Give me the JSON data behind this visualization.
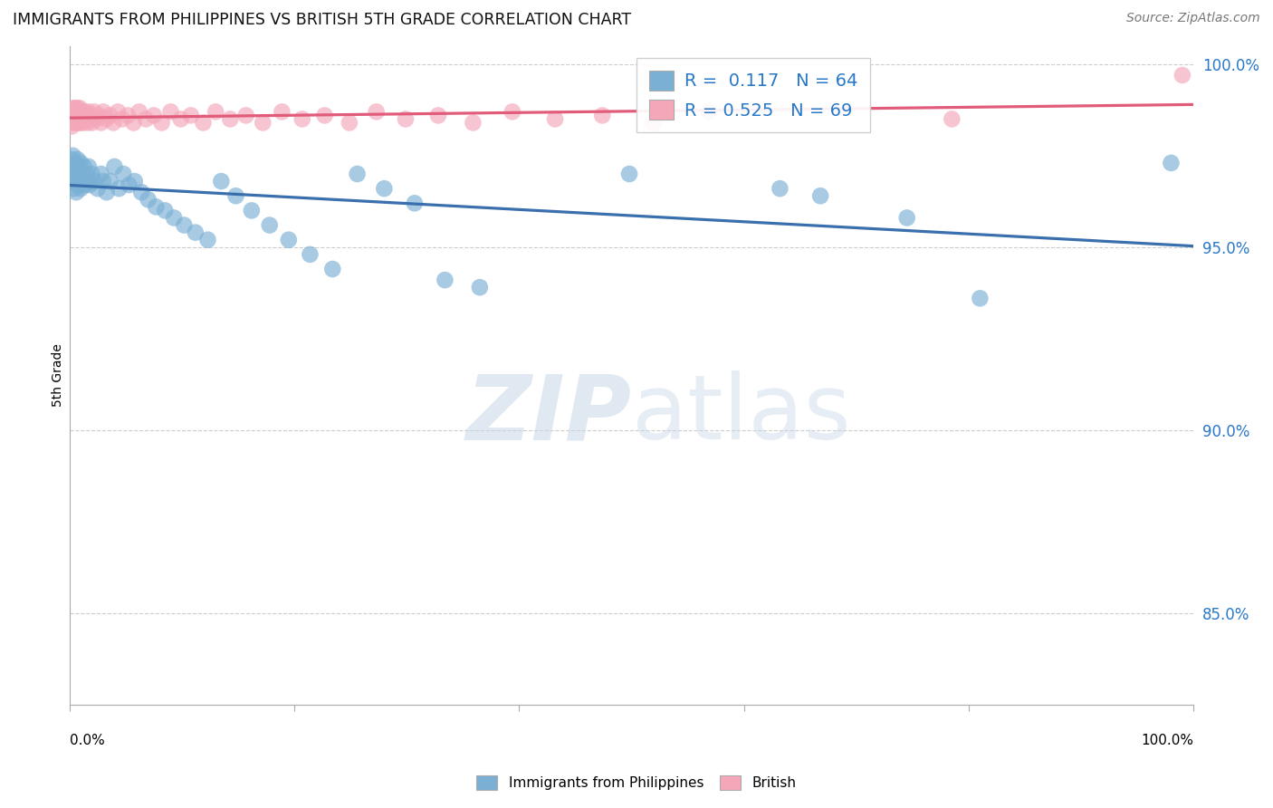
{
  "title": "IMMIGRANTS FROM PHILIPPINES VS BRITISH 5TH GRADE CORRELATION CHART",
  "source": "Source: ZipAtlas.com",
  "ylabel": "5th Grade",
  "R_blue": 0.117,
  "N_blue": 64,
  "R_pink": 0.525,
  "N_pink": 69,
  "blue_color": "#7ab0d4",
  "pink_color": "#f4a7b9",
  "blue_line_color": "#3a6fad",
  "pink_line_color": "#e05c7a",
  "legend_blue_label": "Immigrants from Philippines",
  "legend_pink_label": "British",
  "xlim": [
    0.0,
    1.0
  ],
  "ylim": [
    0.825,
    1.005
  ],
  "ytick_values": [
    0.85,
    0.9,
    0.95,
    1.0
  ],
  "ytick_labels": [
    "85.0%",
    "90.0%",
    "95.0%",
    "100.0%"
  ],
  "blue_x": [
    0.001,
    0.002,
    0.002,
    0.003,
    0.003,
    0.004,
    0.004,
    0.005,
    0.005,
    0.006,
    0.006,
    0.007,
    0.007,
    0.008,
    0.008,
    0.009,
    0.01,
    0.01,
    0.011,
    0.012,
    0.013,
    0.014,
    0.015,
    0.016,
    0.017,
    0.018,
    0.02,
    0.022,
    0.025,
    0.028,
    0.03,
    0.033,
    0.036,
    0.04,
    0.044,
    0.048,
    0.053,
    0.058,
    0.064,
    0.07,
    0.077,
    0.085,
    0.093,
    0.102,
    0.112,
    0.123,
    0.135,
    0.148,
    0.162,
    0.178,
    0.195,
    0.214,
    0.234,
    0.256,
    0.28,
    0.307,
    0.334,
    0.365,
    0.498,
    0.632,
    0.668,
    0.745,
    0.81,
    0.98
  ],
  "blue_y": [
    0.971,
    0.974,
    0.968,
    0.975,
    0.969,
    0.972,
    0.966,
    0.973,
    0.968,
    0.971,
    0.965,
    0.974,
    0.969,
    0.972,
    0.967,
    0.97,
    0.973,
    0.966,
    0.97,
    0.968,
    0.972,
    0.967,
    0.97,
    0.968,
    0.972,
    0.967,
    0.97,
    0.968,
    0.966,
    0.97,
    0.968,
    0.965,
    0.968,
    0.972,
    0.966,
    0.97,
    0.967,
    0.968,
    0.965,
    0.963,
    0.961,
    0.96,
    0.958,
    0.956,
    0.954,
    0.952,
    0.968,
    0.964,
    0.96,
    0.956,
    0.952,
    0.948,
    0.944,
    0.97,
    0.966,
    0.962,
    0.941,
    0.939,
    0.97,
    0.966,
    0.964,
    0.958,
    0.936,
    0.973
  ],
  "pink_x": [
    0.001,
    0.002,
    0.002,
    0.003,
    0.003,
    0.004,
    0.004,
    0.005,
    0.005,
    0.006,
    0.006,
    0.007,
    0.007,
    0.008,
    0.008,
    0.009,
    0.009,
    0.01,
    0.01,
    0.011,
    0.012,
    0.012,
    0.013,
    0.014,
    0.015,
    0.016,
    0.017,
    0.018,
    0.019,
    0.02,
    0.022,
    0.024,
    0.026,
    0.028,
    0.03,
    0.033,
    0.036,
    0.039,
    0.043,
    0.047,
    0.052,
    0.057,
    0.062,
    0.068,
    0.075,
    0.082,
    0.09,
    0.099,
    0.108,
    0.119,
    0.13,
    0.143,
    0.157,
    0.172,
    0.189,
    0.207,
    0.227,
    0.249,
    0.273,
    0.299,
    0.328,
    0.359,
    0.394,
    0.432,
    0.474,
    0.519,
    0.569,
    0.785,
    0.99
  ],
  "pink_y": [
    0.985,
    0.983,
    0.987,
    0.985,
    0.988,
    0.984,
    0.987,
    0.985,
    0.988,
    0.984,
    0.987,
    0.985,
    0.988,
    0.984,
    0.987,
    0.985,
    0.988,
    0.984,
    0.987,
    0.985,
    0.986,
    0.984,
    0.987,
    0.985,
    0.986,
    0.984,
    0.987,
    0.985,
    0.986,
    0.984,
    0.987,
    0.985,
    0.986,
    0.984,
    0.987,
    0.985,
    0.986,
    0.984,
    0.987,
    0.985,
    0.986,
    0.984,
    0.987,
    0.985,
    0.986,
    0.984,
    0.987,
    0.985,
    0.986,
    0.984,
    0.987,
    0.985,
    0.986,
    0.984,
    0.987,
    0.985,
    0.986,
    0.984,
    0.987,
    0.985,
    0.986,
    0.984,
    0.987,
    0.985,
    0.986,
    0.984,
    0.987,
    0.985,
    0.997
  ]
}
